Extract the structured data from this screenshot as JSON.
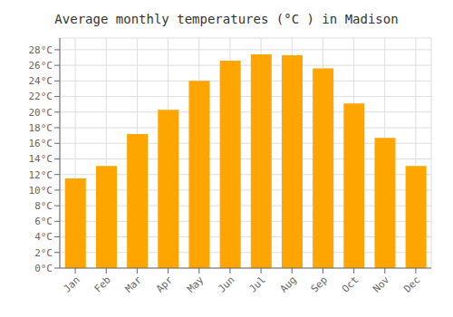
{
  "chart_data": {
    "type": "bar",
    "title": "Average monthly temperatures (°C ) in Madison",
    "categories": [
      "Jan",
      "Feb",
      "Mar",
      "Apr",
      "May",
      "Jun",
      "Jul",
      "Aug",
      "Sep",
      "Oct",
      "Nov",
      "Dec"
    ],
    "values": [
      11.5,
      13.1,
      17.2,
      20.3,
      24.0,
      26.6,
      27.4,
      27.3,
      25.6,
      21.1,
      16.7,
      13.1
    ],
    "color": "#FFA500",
    "ylim": [
      0,
      29.5
    ],
    "yticks": [
      {
        "value": 0,
        "label": "0°C"
      },
      {
        "value": 2,
        "label": "2°C"
      },
      {
        "value": 4,
        "label": "4°C"
      },
      {
        "value": 6,
        "label": "6°C"
      },
      {
        "value": 8,
        "label": "8°C"
      },
      {
        "value": 10,
        "label": "10°C"
      },
      {
        "value": 12,
        "label": "12°C"
      },
      {
        "value": 14,
        "label": "14°C"
      },
      {
        "value": 16,
        "label": "16°C"
      },
      {
        "value": 18,
        "label": "18°C"
      },
      {
        "value": 20,
        "label": "20°C"
      },
      {
        "value": 22,
        "label": "22°C"
      },
      {
        "value": 24,
        "label": "24°C"
      },
      {
        "value": 26,
        "label": "26°C"
      },
      {
        "value": 28,
        "label": "28°C"
      }
    ],
    "grid": true
  }
}
